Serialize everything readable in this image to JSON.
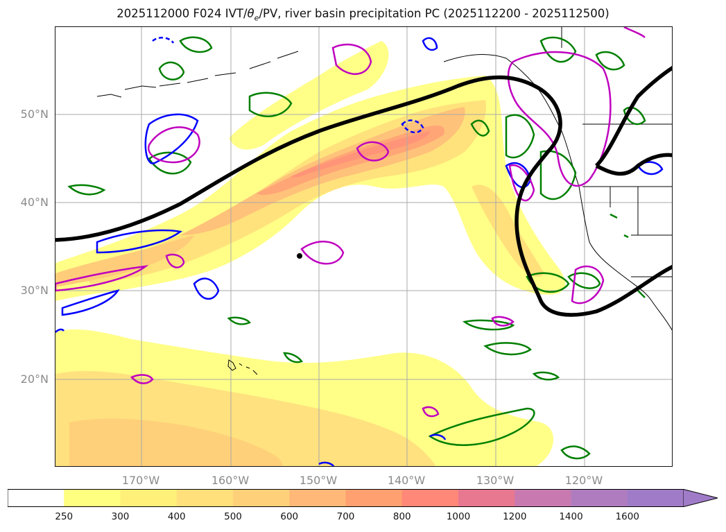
{
  "title": "2025112000 F024 IVT/θe/PV, river basin precipitation PC (2025112200 - 2025112500)",
  "title_parts": {
    "prefix": "2025112000 F024 IVT/",
    "theta": "θ",
    "theta_sub": "e",
    "suffix": "/PV, river basin precipitation PC (2025112200 - 2025112500)"
  },
  "map": {
    "lat_labels": [
      "50°N",
      "40°N",
      "30°N",
      "20°N"
    ],
    "lon_labels": [
      "170°W",
      "160°W",
      "150°W",
      "140°W",
      "130°W",
      "120°W"
    ],
    "grid": true,
    "land_outline_color": "#000000",
    "contour_colors": {
      "theta_e": "#007f00",
      "pv_dashed": "#0000ff",
      "precip_pc": "#bf00bf",
      "jet_axis": "#000000"
    }
  },
  "colorbar": {
    "levels": [
      "250",
      "300",
      "400",
      "500",
      "600",
      "700",
      "800",
      "1000",
      "1200",
      "1400",
      "1600"
    ],
    "colors": [
      "#ffffff",
      "#ffff80",
      "#fff07a",
      "#ffe07a",
      "#ffd07a",
      "#ffb878",
      "#ffa070",
      "#ff8878",
      "#e87890",
      "#c87ab0",
      "#b07cc0",
      "#a07cc8"
    ],
    "extend": "max"
  }
}
